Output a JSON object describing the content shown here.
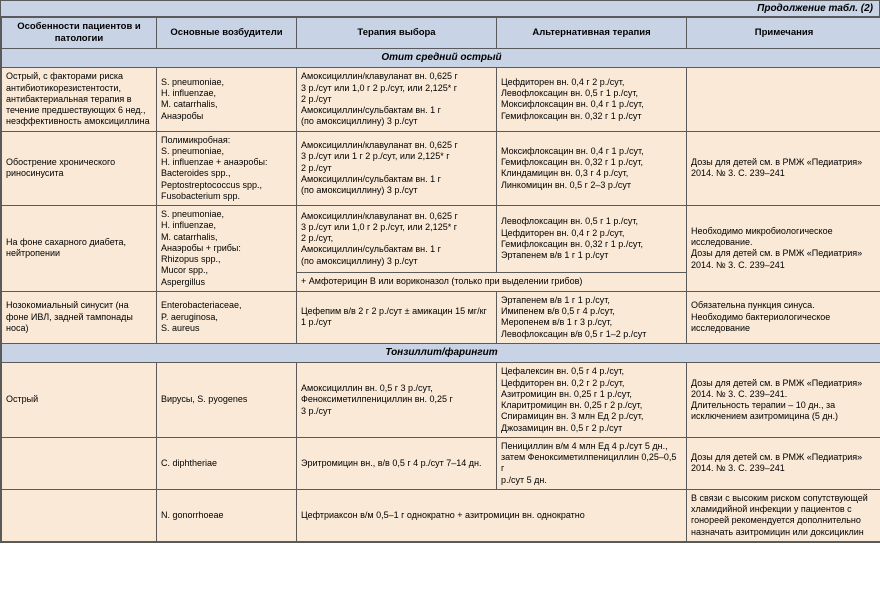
{
  "caption": "Продолжение табл. (2)",
  "headers": [
    "Особенности пациентов и патологии",
    "Основные возбудители",
    "Терапия выбора",
    "Альтернативная терапия",
    "Примечания"
  ],
  "sections": [
    {
      "title": "Отит средний острый",
      "rows": [
        {
          "c0": "Острый, с факторами риска антибиотикорезистентости, антибактериальная терапия в течение предшествующих 6 нед., неэффективность амоксициллина",
          "c1": "S. pneumoniae,\nH. influenzae,\nM. catarrhalis,\nАнаэробы",
          "c2": "Амоксициллин/клавуланат вн. 0,625 г\n3 р./сут или 1,0 г 2 р./сут, или 2,125* г\n2 р./сут\nАмоксициллин/сульбактам вн. 1 г\n(по амоксициллину) 3 р./сут",
          "c3": "Цефдиторен вн. 0,4 г 2 р./сут,\nЛевофлоксацин вн. 0,5 г 1 р./сут,\nМоксифлоксацин вн. 0,4 г 1 р./сут,\nГемифлоксацин вн. 0,32 г 1 р./сут",
          "c4": ""
        },
        {
          "c0": "Обострение хронического риносинусита",
          "c1": "Полимикробная:\nS. pneumoniae,\nH. influenzae + анаэробы:\nBacteroides spp.,\nPeptostreptococcus spp.,\nFusobacterium spp.",
          "c2": "Амоксициллин/клавуланат вн. 0,625 г\n3 р./сут или 1 г 2 р./сут, или 2,125* г\n2 р./сут\nАмоксициллин/сульбактам вн. 1 г\n(по амоксициллину) 3 р./сут",
          "c3": "Моксифлоксацин вн. 0,4 г 1 р./сут,\nГемифлоксацин вн. 0,32 г 1 р./сут,\nКлиндамицин вн. 0,3 г 4 р./сут,\nЛинкомицин вн. 0,5 г 2–3 р./сут",
          "c4": "Дозы для детей см. в РМЖ «Педиатрия» 2014. № 3. С. 239–241"
        },
        {
          "c0": "На фоне сахарного диабета, нейтропении",
          "c0_rowspan": 2,
          "c1": "S. pneumoniae,\nH. influenzae,\nM. catarrhalis,\nАнаэробы + грибы:\nRhizopus spp.,\nMucor spp.,\nAspergillus",
          "c1_rowspan": 2,
          "c2": "Амоксициллин/клавуланат вн. 0,625 г\n3 р./сут или 1,0 г 2 р./сут, или 2,125* г\n2 р./сут,\nАмоксициллин/сульбактам вн. 1 г\n(по амоксициллину) 3 р./сут",
          "c3": "Левофлоксацин вн. 0,5 г 1 р./сут,\nЦефдиторен вн. 0,4 г 2 р./сут,\nГемифлоксацин вн. 0,32 г 1 р./сут,\nЭртапенем в/в 1 г 1 р./сут",
          "c4": "Необходимо микробиологическое исследование.\nДозы для детей см. в РМЖ «Педиатрия» 2014. № 3. С. 239–241",
          "c4_rowspan": 2,
          "extra_row": {
            "c2": "+ Амфотерицин В или вориконазол (только при выделении грибов)",
            "c2_colspan": 2
          }
        },
        {
          "c0": "Нозокомиальный синусит (на фоне ИВЛ, задней тампонады носа)",
          "c1": "Enterobacteriaceae,\nP. aeruginosa,\nS. aureus",
          "c2": "Цефепим в/в 2 г 2 р./сут ± амикацин 15 мг/кг 1 р./сут",
          "c3": "Эртапенем в/в 1 г 1 р./сут,\nИмипенем в/в 0,5 г 4 р./сут,\nМеропенем в/в 1 г 3 р./сут,\nЛевофлоксацин в/в 0,5 г 1–2 р./сут",
          "c4": "Обязательна пункция синуса.\nНеобходимо бактериологическое исследование"
        }
      ]
    },
    {
      "title": "Тонзиллит/фарингит",
      "rows": [
        {
          "c0": "Острый",
          "c1": "Вирусы, S. pyogenes",
          "c2": "Амоксициллин вн. 0,5 г 3 р./сут,\nФеноксиметилпенициллин вн. 0,25 г\n3 р./сут",
          "c3": "Цефалексин вн. 0,5 г 4 р./сут,\nЦефдиторен вн. 0,2 г 2 р./сут,\nАзитромицин вн. 0,25 г 1 р./сут,\nКларитромицин вн. 0,25 г 2 р./сут,\nСпирамицин вн. 3 млн Ед 2 р./сут,\nДжозамицин вн. 0,5 г 2 р./сут",
          "c4": "Дозы для детей см. в РМЖ «Педиатрия» 2014. № 3. С. 239–241.\nДлительность терапии – 10 дн., за исключением азитромицина (5 дн.)"
        },
        {
          "c0": "",
          "c1": "C. diphtheriae",
          "c2": "Эритромицин вн., в/в 0,5 г 4 р./сут 7–14 дн.",
          "c3": "Пенициллин в/м 4 млн Ед 4 р./сут 5 дн., затем Феноксиметилпенициллин 0,25–0,5 г\nр./сут 5 дн.",
          "c4": "Дозы для детей см. в РМЖ «Педиатрия» 2014. № 3. С. 239–241"
        },
        {
          "c0": "",
          "c1": "N. gonorrhoeae",
          "c2": "Цефтриаксон в/м 0,5–1 г однократно + азитромицин вн. однократно",
          "c2_colspan": 2,
          "c4": "В связи с высоким риском сопутствующей хламидийной инфекции у пациентов с гонореей рекомендуется дополнительно назначать азитромицин или доксициклин"
        }
      ]
    }
  ],
  "colwidths": [
    "155px",
    "140px",
    "200px",
    "190px",
    "195px"
  ]
}
